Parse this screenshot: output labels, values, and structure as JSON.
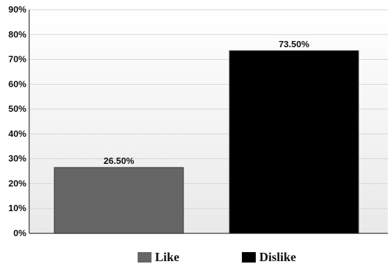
{
  "chart_data": {
    "type": "bar",
    "categories": [
      "Like",
      "Dislike"
    ],
    "values": [
      26.5,
      73.5
    ],
    "data_labels": [
      "26.50%",
      "73.50%"
    ],
    "colors": [
      "#666666",
      "#000000"
    ],
    "title": "",
    "xlabel": "",
    "ylabel": "",
    "ylim": [
      0,
      90
    ],
    "yticks": [
      0,
      10,
      20,
      30,
      40,
      50,
      60,
      70,
      80,
      90
    ],
    "ytick_labels": [
      "0%",
      "10%",
      "20%",
      "30%",
      "40%",
      "50%",
      "60%",
      "70%",
      "80%",
      "90%"
    ],
    "grid": true,
    "legend_position": "bottom"
  },
  "legend": [
    {
      "label": "Like",
      "color": "#666666"
    },
    {
      "label": "Dislike",
      "color": "#000000"
    }
  ]
}
